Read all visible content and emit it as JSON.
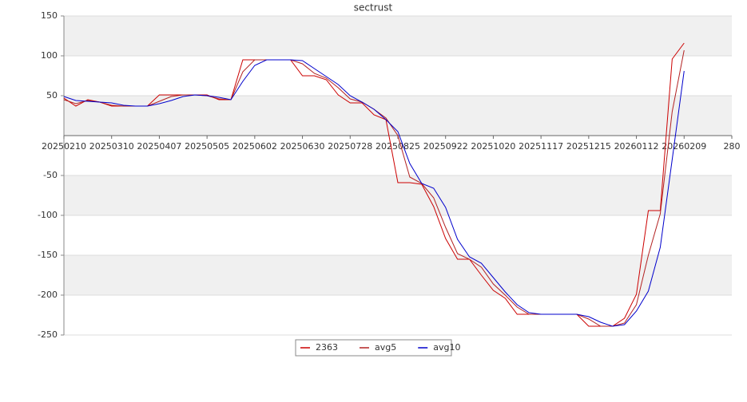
{
  "chart_data": {
    "type": "line",
    "title": "sectrust",
    "x": [
      "20250210",
      "20250217",
      "20250224",
      "20250303",
      "20250310",
      "20250317",
      "20250324",
      "20250331",
      "20250407",
      "20250414",
      "20250421",
      "20250428",
      "20250505",
      "20250512",
      "20250519",
      "20250526",
      "20250602",
      "20250609",
      "20250616",
      "20250623",
      "20250630",
      "20250707",
      "20250714",
      "20250721",
      "20250728",
      "20250804",
      "20250811",
      "20250818",
      "20250825",
      "20250901",
      "20250908",
      "20250915",
      "20250922",
      "20250929",
      "20251006",
      "20251013",
      "20251020",
      "20251027",
      "20251103",
      "20251110",
      "20251117",
      "20251124",
      "20251201",
      "20251208",
      "20251215",
      "20251222",
      "20251229",
      "20260105",
      "20260112",
      "20260119",
      "20260126",
      "20260202",
      "20260209"
    ],
    "series": [
      {
        "name": "2363",
        "color": "#cc0000",
        "values": [
          47,
          37,
          45,
          42,
          37,
          37,
          37,
          37,
          51,
          51,
          51,
          51,
          51,
          45,
          45,
          95,
          95,
          95,
          95,
          95,
          75,
          75,
          70,
          51,
          41,
          41,
          26,
          20,
          -59,
          -59,
          -61,
          -89,
          -129,
          -155,
          -155,
          -175,
          -194,
          -204,
          -224,
          -224,
          -224,
          -224,
          -224,
          -224,
          -239,
          -239,
          -239,
          -229,
          -199,
          -94,
          -94,
          96,
          116
        ]
      },
      {
        "name": "avg5",
        "color": "#b22222",
        "values": [
          45,
          40,
          44,
          42,
          38,
          37,
          37,
          37,
          43,
          49,
          51,
          51,
          50,
          46,
          45,
          80,
          95,
          95,
          95,
          95,
          90,
          78,
          72,
          60,
          46,
          42,
          33,
          22,
          0,
          -52,
          -60,
          -78,
          -115,
          -148,
          -155,
          -165,
          -186,
          -200,
          -215,
          -224,
          -224,
          -224,
          -224,
          -224,
          -230,
          -239,
          -239,
          -235,
          -212,
          -150,
          -98,
          30,
          107
        ]
      },
      {
        "name": "avg10",
        "color": "#0000cc",
        "values": [
          49,
          44,
          43,
          42,
          41,
          38,
          37,
          37,
          40,
          44,
          49,
          51,
          50,
          48,
          45,
          68,
          88,
          95,
          95,
          95,
          94,
          84,
          74,
          64,
          50,
          42,
          33,
          20,
          5,
          -35,
          -60,
          -66,
          -90,
          -130,
          -152,
          -160,
          -178,
          -196,
          -212,
          -222,
          -224,
          -224,
          -224,
          -224,
          -227,
          -234,
          -239,
          -237,
          -220,
          -195,
          -140,
          -30,
          81
        ]
      }
    ],
    "xlim": [
      "20250210",
      "20260309"
    ],
    "xticks": [
      "20250210",
      "20250310",
      "20250407",
      "20250505",
      "20250602",
      "20250630",
      "20250728",
      "20250825",
      "20250922",
      "20251020",
      "20251117",
      "20251215",
      "20260112",
      "20260209",
      {
        "value": "20260309",
        "label": "280"
      }
    ],
    "ylim": [
      -250,
      150
    ],
    "yticks": [
      150,
      100,
      50,
      -50,
      -100,
      -150,
      -200,
      -250
    ],
    "grid": true,
    "legend": "bottom"
  }
}
